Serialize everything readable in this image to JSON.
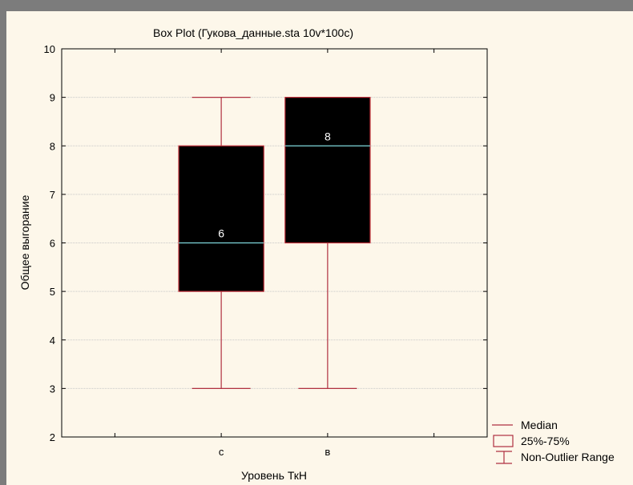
{
  "chart_data": {
    "type": "box",
    "title": "Box Plot (Гукова_данные.sta 10v*100c)",
    "xlabel": "Уровень ТкН",
    "ylabel": "Общее выгорание",
    "ylim": [
      2,
      10
    ],
    "yticks": [
      2,
      3,
      4,
      5,
      6,
      7,
      8,
      9,
      10
    ],
    "grid": true,
    "categories": [
      "с",
      "в"
    ],
    "boxes": [
      {
        "category": "с",
        "min": 3,
        "q1": 5,
        "median": 6,
        "q3": 8,
        "max": 9,
        "median_label": "6"
      },
      {
        "category": "в",
        "min": 3,
        "q1": 6,
        "median": 8,
        "q3": 9,
        "max": 9,
        "median_label": "8"
      }
    ],
    "legend": {
      "position": "bottom-right",
      "items": [
        {
          "type": "median",
          "label": "Median"
        },
        {
          "type": "box",
          "label": "25%-75%"
        },
        {
          "type": "whisker",
          "label": "Non-Outlier Range"
        }
      ]
    },
    "colors": {
      "box_fill": "#000000",
      "box_edge": "#c0303a",
      "whisker": "#b03040",
      "median": "#7fd8dc",
      "grid": "#c8c8c8",
      "background": "#fdf7ea",
      "frame": "#7c7c7c"
    }
  }
}
